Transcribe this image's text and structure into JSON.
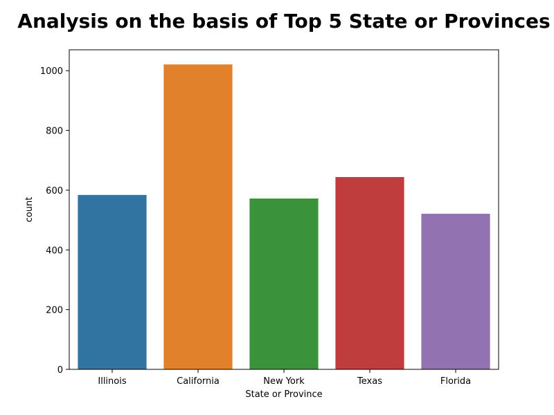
{
  "chart_data": {
    "type": "bar",
    "title": "Analysis on the basis of Top 5 State or Provinces",
    "xlabel": "State or Province",
    "ylabel": "count",
    "categories": [
      "Illinois",
      "California",
      "New York",
      "Texas",
      "Florida"
    ],
    "values": [
      584,
      1021,
      572,
      644,
      521
    ],
    "colors": [
      "#3274a1",
      "#e1812c",
      "#3a923a",
      "#c03d3e",
      "#9372b2"
    ],
    "ylim": [
      0,
      1070
    ],
    "yticks": [
      0,
      200,
      400,
      600,
      800,
      1000
    ],
    "grid": false,
    "legend": "none"
  }
}
